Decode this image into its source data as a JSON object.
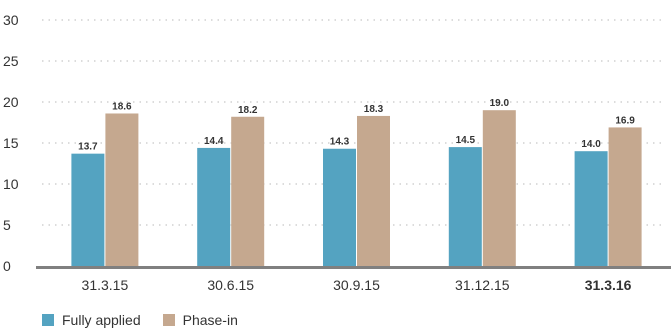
{
  "colors": {
    "fully_applied": "#54a3c1",
    "phase_in": "#c5a88f",
    "axis": "#808080",
    "grid": "#b9b9b9"
  },
  "chart_data": {
    "type": "bar",
    "title": "",
    "xlabel": "",
    "ylabel": "",
    "categories": [
      "31.3.15",
      "30.6.15",
      "30.9.15",
      "31.12.15",
      "31.3.16"
    ],
    "emphasized_category": "31.3.16",
    "series": [
      {
        "name": "Fully applied",
        "values": [
          13.7,
          14.4,
          14.3,
          14.5,
          14.0
        ]
      },
      {
        "name": "Phase-in",
        "values": [
          18.6,
          18.2,
          18.3,
          19.0,
          16.9
        ]
      }
    ],
    "data_labels": [
      [
        "13.7",
        "14.4",
        "14.3",
        "14.5",
        "14.0"
      ],
      [
        "18.6",
        "18.2",
        "18.3",
        "19.0",
        "16.9"
      ]
    ],
    "yticks": [
      "0",
      "5",
      "10",
      "15",
      "20",
      "25",
      "30"
    ],
    "ylim": [
      0,
      30
    ],
    "grid": "dotted horizontal",
    "legend_position": "bottom-left"
  }
}
